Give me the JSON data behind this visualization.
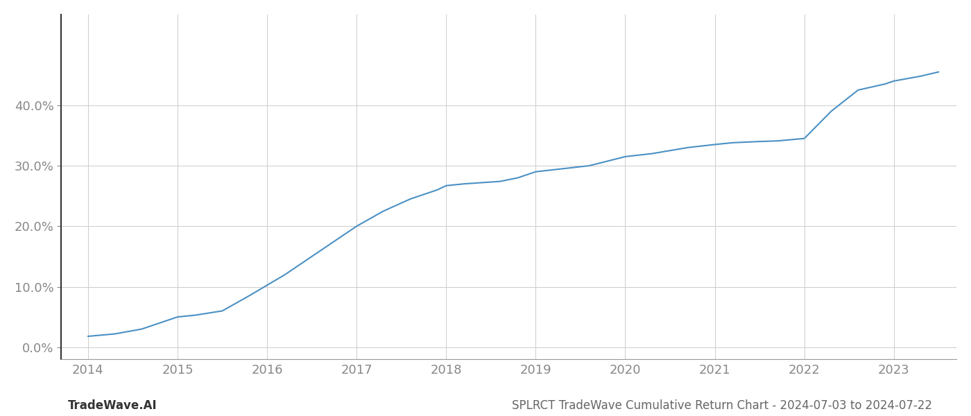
{
  "title": "SPLRCT TradeWave Cumulative Return Chart - 2024-07-03 to 2024-07-22",
  "footer_left": "TradeWave.AI",
  "line_color": "#4a90c4",
  "background_color": "#ffffff",
  "grid_color": "#cccccc",
  "x_values": [
    2014.0,
    2014.3,
    2014.6,
    2015.0,
    2015.2,
    2015.5,
    2015.8,
    2016.2,
    2016.5,
    2016.8,
    2017.0,
    2017.3,
    2017.6,
    2017.9,
    2018.0,
    2018.2,
    2018.4,
    2018.6,
    2018.8,
    2019.0,
    2019.3,
    2019.6,
    2020.0,
    2020.3,
    2020.5,
    2020.7,
    2021.0,
    2021.2,
    2021.5,
    2021.7,
    2022.0,
    2022.3,
    2022.6,
    2022.9,
    2023.0,
    2023.3,
    2023.5
  ],
  "y_values": [
    1.8,
    2.2,
    3.0,
    5.0,
    5.3,
    6.0,
    8.5,
    12.0,
    15.0,
    18.0,
    20.0,
    22.5,
    24.5,
    26.0,
    26.7,
    27.0,
    27.2,
    27.4,
    28.0,
    29.0,
    29.5,
    30.0,
    31.5,
    32.0,
    32.5,
    33.0,
    33.5,
    33.8,
    34.0,
    34.1,
    34.5,
    39.0,
    42.5,
    43.5,
    44.0,
    44.8,
    45.5
  ],
  "xlim": [
    2013.7,
    2023.7
  ],
  "ylim": [
    -2.0,
    55.0
  ],
  "yticks": [
    0.0,
    10.0,
    20.0,
    30.0,
    40.0
  ],
  "xticks": [
    2014,
    2015,
    2016,
    2017,
    2018,
    2019,
    2020,
    2021,
    2022,
    2023
  ],
  "line_width": 1.5,
  "axis_color": "#888888",
  "left_spine_color": "#333333",
  "bottom_spine_color": "#999999",
  "tick_color": "#888888",
  "tick_fontsize": 13,
  "footer_fontsize": 12,
  "title_fontsize": 12
}
